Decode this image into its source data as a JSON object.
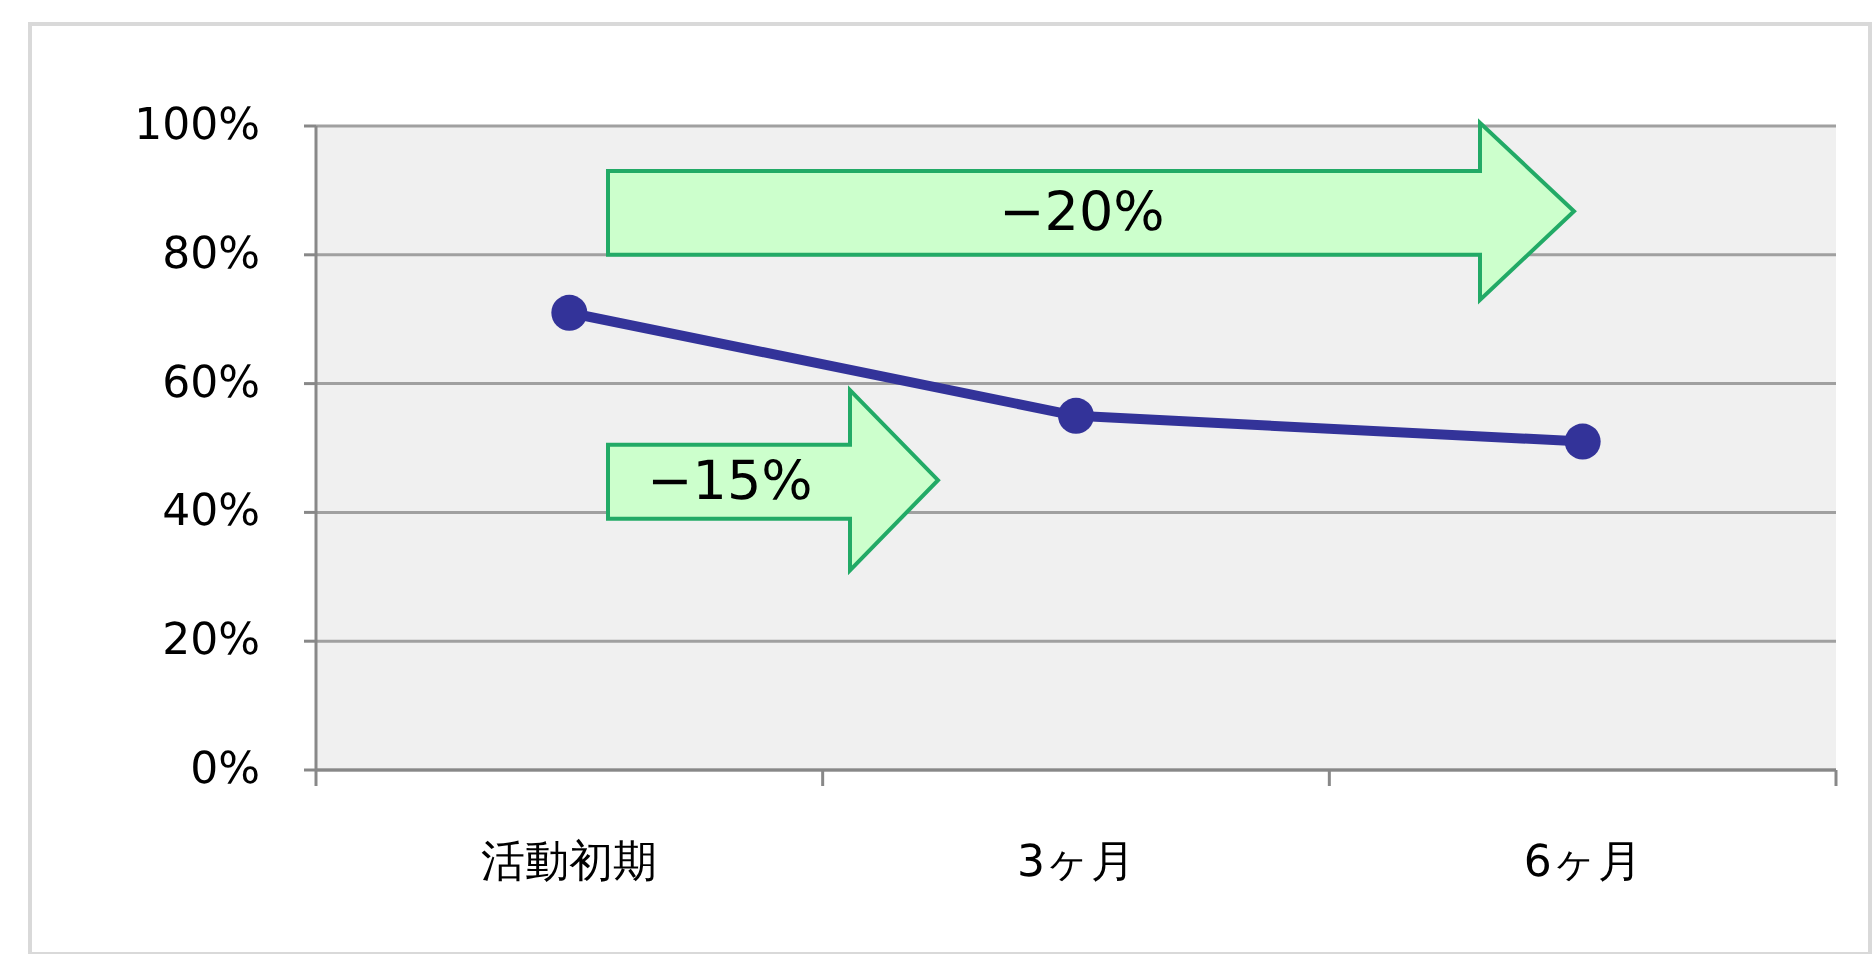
{
  "chart_data": {
    "type": "line",
    "categories": [
      "活動初期",
      "3ヶ月",
      "6ヶ月"
    ],
    "series": [
      {
        "color": "#333399",
        "values": [
          71,
          55,
          51
        ]
      }
    ],
    "ylim": [
      0,
      100
    ],
    "yticks": [
      {
        "value": 0,
        "label": "0%"
      },
      {
        "value": 20,
        "label": "20%"
      },
      {
        "value": 40,
        "label": "40%"
      },
      {
        "value": 60,
        "label": "60%"
      },
      {
        "value": 80,
        "label": "80%"
      },
      {
        "value": 100,
        "label": "100%"
      }
    ],
    "grid": "y",
    "marker": "circle",
    "line_style": "solid",
    "annotations": [
      "−20%",
      "−15%"
    ]
  }
}
